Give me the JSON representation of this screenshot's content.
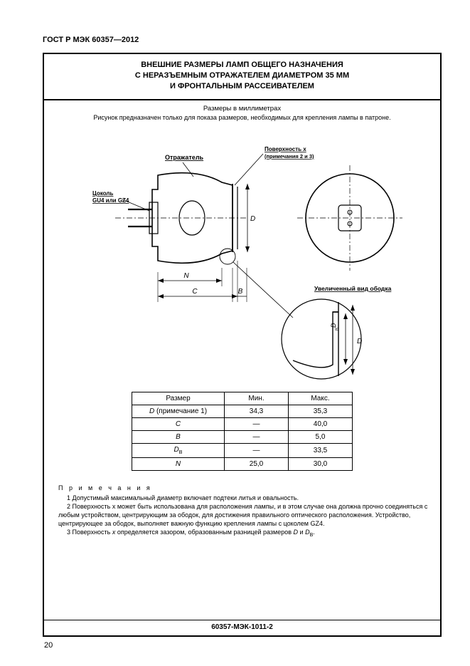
{
  "doc_header": "ГОСТ Р МЭК 60357—2012",
  "title": {
    "line1": "ВНЕШНИЕ РАЗМЕРЫ ЛАМП ОБЩЕГО НАЗНАЧЕНИЯ",
    "line2": "С НЕРАЗЪЕМНЫМ ОТРАЖАТЕЛЕМ ДИАМЕТРОМ 35 ММ",
    "line3": "И ФРОНТАЛЬНЫМ РАССЕИВАТЕЛЕМ"
  },
  "subtitle": {
    "line1": "Размеры в миллиметрах",
    "line2": "Рисунок предназначен только для показа размеров, необходимых для крепления лампы в патроне."
  },
  "figure": {
    "labels": {
      "reflector": "Отражатель",
      "cap_line1": "Цоколь",
      "cap_line2": "GU4 или GZ4",
      "surface_x_line1": "Поверхность x",
      "surface_x_line2": "(примечания 2 и 3)",
      "magnified": "Увеличенный вид ободка",
      "dim_D": "D",
      "dim_C": "C",
      "dim_B": "B",
      "dim_N": "N",
      "dim_DB": "D",
      "dim_DB_sub": "B"
    },
    "stroke": "#000000",
    "fill_bg": "#ffffff",
    "font_small": 8,
    "font_tiny": 7
  },
  "table": {
    "head": {
      "c1": "Размер",
      "c2": "Мин.",
      "c3": "Макс."
    },
    "rows": [
      {
        "label_html": "<span class='it'>D</span> (примечание 1)",
        "min": "34,3",
        "max": "35,3"
      },
      {
        "label_html": "<span class='it'>C</span>",
        "min": "—",
        "max": "40,0"
      },
      {
        "label_html": "<span class='it'>B</span>",
        "min": "—",
        "max": "5,0"
      },
      {
        "label_html": "<span class='it'>D</span><span class='sub'>B</span>",
        "min": "—",
        "max": "33,5"
      },
      {
        "label_html": "<span class='it'>N</span>",
        "min": "25,0",
        "max": "30,0"
      }
    ]
  },
  "notes": {
    "head": "П р и м е ч а н и я",
    "items": [
      "1  Допустимый максимальный диаметр включает подтеки литья и овальность.",
      "2  Поверхность x может быть использована для расположения лампы, и в этом случае она должна прочно соединяться с любым устройством, центрирующим за ободок, для достижения правильного оптического расположения. Устройство, центрирующее за ободок, выполняет важную функцию крепления лампы с цоколем GZ4.",
      "3  Поверхность x определяется зазором, образованным разницей размеров D и D_B."
    ],
    "item3_html": "3  Поверхность <span class='it'>x</span> определяется зазором, образованным разницей размеров <span class='it'>D</span> и <span class='it'>D</span><span class='sub'>B</span>."
  },
  "footer_code": "60357-МЭК-1011-2",
  "page_number": "20"
}
